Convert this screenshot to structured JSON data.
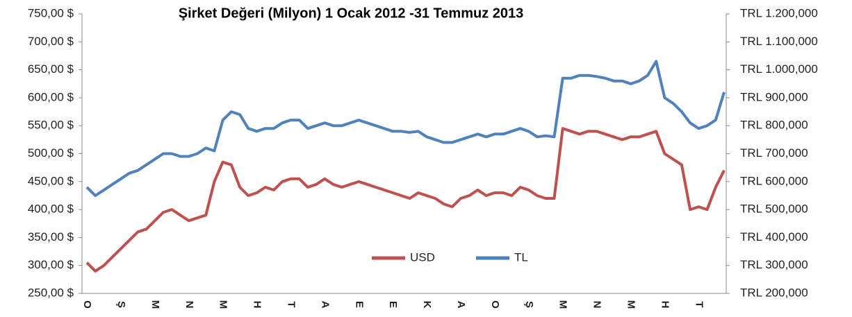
{
  "chart_data": {
    "type": "line",
    "title": "Şirket Değeri  (Milyon) 1 Ocak 2012 -31 Temmuz 2013",
    "categories": [
      "O",
      null,
      null,
      null,
      "Ş",
      null,
      null,
      null,
      "M",
      null,
      null,
      null,
      "N",
      null,
      null,
      null,
      "M",
      null,
      null,
      null,
      "H",
      null,
      null,
      null,
      "T",
      null,
      null,
      null,
      "A",
      null,
      null,
      null,
      "E",
      null,
      null,
      null,
      "E",
      null,
      null,
      null,
      "K",
      null,
      null,
      null,
      "A",
      null,
      null,
      null,
      "O",
      null,
      null,
      null,
      "Ş",
      null,
      null,
      null,
      "M",
      null,
      null,
      null,
      "N",
      null,
      null,
      null,
      "M",
      null,
      null,
      null,
      "H",
      null,
      null,
      null,
      "T",
      null,
      null,
      null
    ],
    "series": [
      {
        "name": "USD",
        "color": "#c0504d",
        "axis": "y",
        "values": [
          305,
          290,
          300,
          315,
          330,
          345,
          360,
          365,
          380,
          395,
          400,
          390,
          380,
          385,
          390,
          450,
          485,
          480,
          440,
          425,
          430,
          440,
          435,
          450,
          455,
          455,
          440,
          445,
          455,
          445,
          440,
          445,
          450,
          445,
          440,
          435,
          430,
          425,
          420,
          430,
          425,
          420,
          410,
          405,
          420,
          425,
          435,
          425,
          430,
          430,
          425,
          440,
          435,
          425,
          420,
          420,
          545,
          540,
          535,
          540,
          540,
          535,
          530,
          525,
          530,
          530,
          535,
          540,
          500,
          490,
          480,
          400,
          405,
          400,
          440,
          470
        ]
      },
      {
        "name": "TL",
        "color": "#4f81bd",
        "axis": "y2",
        "values": [
          580000,
          550000,
          570000,
          590000,
          610000,
          630000,
          640000,
          660000,
          680000,
          700000,
          700000,
          690000,
          690000,
          700000,
          720000,
          710000,
          820000,
          850000,
          840000,
          790000,
          780000,
          790000,
          790000,
          810000,
          820000,
          820000,
          790000,
          800000,
          810000,
          800000,
          800000,
          810000,
          820000,
          810000,
          800000,
          790000,
          780000,
          780000,
          776000,
          780000,
          760000,
          750000,
          740000,
          740000,
          750000,
          760000,
          770000,
          760000,
          770000,
          770000,
          780000,
          790000,
          780000,
          760000,
          764000,
          760000,
          970000,
          970000,
          980000,
          980000,
          976000,
          970000,
          960000,
          960000,
          950000,
          960000,
          980000,
          1030000,
          900000,
          880000,
          850000,
          810000,
          790000,
          800000,
          820000,
          920000
        ]
      }
    ],
    "ylim": [
      250,
      750
    ],
    "yticks": [
      {
        "value": 250,
        "label": "250,00 $"
      },
      {
        "value": 300,
        "label": "300,00 $"
      },
      {
        "value": 350,
        "label": "350,00 $"
      },
      {
        "value": 400,
        "label": "400,00 $"
      },
      {
        "value": 450,
        "label": "450,00 $"
      },
      {
        "value": 500,
        "label": "500,00 $"
      },
      {
        "value": 550,
        "label": "550,00 $"
      },
      {
        "value": 600,
        "label": "600,00 $"
      },
      {
        "value": 650,
        "label": "650,00 $"
      },
      {
        "value": 700,
        "label": "700,00 $"
      },
      {
        "value": 750,
        "label": "750,00 $"
      }
    ],
    "y2lim": [
      200000,
      1200000
    ],
    "y2ticks": [
      {
        "value": 200000,
        "label": "TRL 200,000"
      },
      {
        "value": 300000,
        "label": "TRL 300,000"
      },
      {
        "value": 400000,
        "label": "TRL 400,000"
      },
      {
        "value": 500000,
        "label": "TRL 500,000"
      },
      {
        "value": 600000,
        "label": "TRL 600,000"
      },
      {
        "value": 700000,
        "label": "TRL 700,000"
      },
      {
        "value": 800000,
        "label": "TRL 800,000"
      },
      {
        "value": 900000,
        "label": "TRL 900,000"
      },
      {
        "value": 1000000,
        "label": "TRL 1.000,000"
      },
      {
        "value": 1100000,
        "label": "TRL 1.100,000"
      },
      {
        "value": 1200000,
        "label": "TRL 1.200,000"
      }
    ],
    "grid": false
  }
}
